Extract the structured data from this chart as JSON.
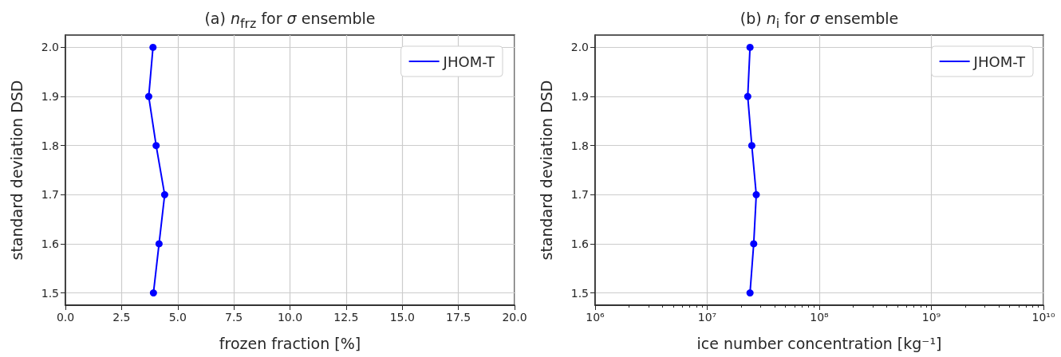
{
  "chart_data": [
    {
      "type": "line",
      "title": "(a) n$_{frz}$ for σ ensemble",
      "xlabel": "frozen fraction [%]",
      "ylabel": "standard deviation DSD",
      "series": [
        {
          "name": "JHOM-T",
          "color": "#0000ff",
          "x": [
            3.92,
            4.17,
            4.42,
            4.04,
            3.71,
            3.9
          ],
          "values": [
            1.5,
            1.6,
            1.7,
            1.8,
            1.9,
            2.0
          ]
        }
      ],
      "xlim": [
        0,
        20
      ],
      "xticks": [
        {
          "value": 0,
          "label": "0.0"
        },
        2.5,
        {
          "value": 5,
          "label": "5.0"
        },
        7.5,
        {
          "value": 10,
          "label": "10.0"
        },
        12.5,
        {
          "value": 15,
          "label": "15.0"
        },
        17.5,
        {
          "value": 20,
          "label": "20.0"
        }
      ],
      "ylim": [
        1.475,
        2.025
      ],
      "yticks": [
        1.5,
        1.6,
        1.7,
        1.8,
        1.9,
        {
          "value": 2,
          "label": "2.0"
        }
      ],
      "grid": true,
      "legend": "top right",
      "marker": "circle",
      "line_style": "solid"
    },
    {
      "type": "line",
      "title": "(b) n$_{i}$ for σ ensemble",
      "xlabel": "ice number concentration [kg⁻¹]",
      "ylabel": "standard deviation DSD",
      "series": [
        {
          "name": "JHOM-T",
          "color": "#0000ff",
          "x": [
            24100000,
            26000000,
            27400000,
            25000000,
            23000000,
            24100000
          ],
          "values": [
            1.5,
            1.6,
            1.7,
            1.8,
            1.9,
            2.0
          ]
        }
      ],
      "xlim": [
        1000000,
        10000000000
      ],
      "xticks": [
        {
          "value": 1000000,
          "label": "10⁶"
        },
        {
          "value": 10000000,
          "label": "10⁷"
        },
        {
          "value": 100000000,
          "label": "10⁸"
        },
        {
          "value": 1000000000,
          "label": "10⁹"
        },
        {
          "value": 10000000000,
          "label": "10¹⁰"
        }
      ],
      "ylim": [
        1.475,
        2.025
      ],
      "yticks": [
        1.5,
        1.6,
        1.7,
        1.8,
        1.9,
        {
          "value": 2,
          "label": "2.0"
        }
      ],
      "log": "x",
      "grid": true,
      "legend": "top right",
      "marker": "circle",
      "line_style": "solid"
    }
  ]
}
